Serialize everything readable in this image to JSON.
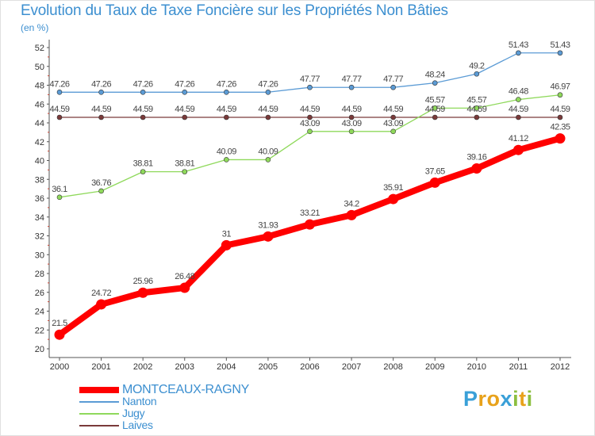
{
  "title": "Evolution du Taux de Taxe Foncière sur les Propriétés Non Bâties",
  "unit": "(en %)",
  "logo": {
    "text": "Proxiti",
    "letters": [
      {
        "ch": "P",
        "color": "#3aa0d8"
      },
      {
        "ch": "r",
        "color": "#e8a21b"
      },
      {
        "ch": "o",
        "color": "#e8a21b"
      },
      {
        "ch": "x",
        "color": "#3aa0d8"
      },
      {
        "ch": "i",
        "color": "#8cbf3f"
      },
      {
        "ch": "t",
        "color": "#e8a21b"
      },
      {
        "ch": "i",
        "color": "#8cbf3f"
      }
    ]
  },
  "chart_data": {
    "type": "line",
    "title": "Evolution du Taux de Taxe Foncière sur les Propriétés Non Bâties",
    "ylabel": "(en %)",
    "xlabel": "",
    "ylim": [
      20,
      52
    ],
    "yticks": [
      20,
      22,
      24,
      26,
      28,
      30,
      32,
      34,
      36,
      38,
      40,
      42,
      44,
      46,
      48,
      50,
      52
    ],
    "grid": false,
    "legend_position": "bottom-left",
    "x": [
      "2000",
      "2001",
      "2002",
      "2003",
      "2004",
      "2005",
      "2006",
      "2007",
      "2008",
      "2009",
      "2010",
      "2011",
      "2012"
    ],
    "series": [
      {
        "name": "MONTCEAUX-RAGNY",
        "color": "#ff0000",
        "emphasis": true,
        "values": [
          21.5,
          24.72,
          25.96,
          26.48,
          31,
          31.93,
          33.21,
          34.2,
          35.91,
          37.65,
          39.16,
          41.12,
          42.35
        ],
        "labels": [
          "21.5",
          "24.72",
          "25.96",
          "26.48",
          "31",
          "31.93",
          "33.21",
          "34.2",
          "35.91",
          "37.65",
          "39.16",
          "41.12",
          "42.35"
        ]
      },
      {
        "name": "Nanton",
        "color": "#5b9bd5",
        "emphasis": false,
        "values": [
          47.26,
          47.26,
          47.26,
          47.26,
          47.26,
          47.26,
          47.77,
          47.77,
          47.77,
          48.24,
          49.2,
          51.43,
          51.43
        ],
        "labels": [
          "47.26",
          "47.26",
          "47.26",
          "47.26",
          "47.26",
          "47.26",
          "47.77",
          "47.77",
          "47.77",
          "48.24",
          "49.2",
          "51.43",
          "51.43"
        ]
      },
      {
        "name": "Jugy",
        "color": "#8fd95b",
        "emphasis": false,
        "values": [
          36.1,
          36.76,
          38.81,
          38.81,
          40.09,
          40.09,
          43.09,
          43.09,
          43.09,
          45.57,
          45.57,
          46.48,
          46.97
        ],
        "labels": [
          "36.1",
          "36.76",
          "38.81",
          "38.81",
          "40.09",
          "40.09",
          "43.09",
          "43.09",
          "43.09",
          "45.57",
          "45.57",
          "46.48",
          "46.97"
        ]
      },
      {
        "name": "Laives",
        "color": "#7a3a3a",
        "emphasis": false,
        "values": [
          44.59,
          44.59,
          44.59,
          44.59,
          44.59,
          44.59,
          44.59,
          44.59,
          44.59,
          44.59,
          44.59,
          44.59,
          44.59
        ],
        "labels": [
          "44.59",
          "44.59",
          "44.59",
          "44.59",
          "44.59",
          "44.59",
          "44.59",
          "44.59",
          "44.59",
          "44.59",
          "44.59",
          "44.59",
          "44.59"
        ]
      }
    ]
  }
}
